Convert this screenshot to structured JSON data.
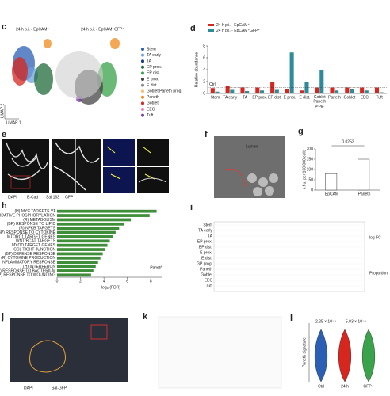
{
  "panels": {
    "c": {
      "letter": "c",
      "titles": [
        "24 h p.i. - EpCAM⁺",
        "24 h p.i. - EpCAM⁺GFP⁺"
      ],
      "xlabel": "UMAP 1",
      "ylabel": "UMAP 2",
      "legend": [
        {
          "name": "Stem",
          "color": "#2b5fb4"
        },
        {
          "name": "TA early",
          "color": "#6f9fdc"
        },
        {
          "name": "TA",
          "color": "#1c3a8a"
        },
        {
          "name": "EP prox.",
          "color": "#1f6b3a"
        },
        {
          "name": "EP dist.",
          "color": "#3aa24a"
        },
        {
          "name": "E prox.",
          "color": "#444444"
        },
        {
          "name": "E dist.",
          "color": "#8a8a8a"
        },
        {
          "name": "Goblet Paneth prog.",
          "color": "#f5c07a"
        },
        {
          "name": "Paneth",
          "color": "#f08a1c"
        },
        {
          "name": "Goblet",
          "color": "#d7261e"
        },
        {
          "name": "EEC",
          "color": "#e87fb0"
        },
        {
          "name": "Tuft",
          "color": "#7a3fa0"
        }
      ]
    },
    "e": {
      "letter": "e",
      "legend": [
        "DAPI",
        "E-Cad",
        "Sal 163",
        "GFP"
      ]
    },
    "f": {
      "letter": "f",
      "label": "Lumen"
    },
    "i": {
      "letter": "i",
      "rows": [
        "Stem",
        "TA early",
        "TA",
        "EP prox.",
        "EP dist.",
        "E prox.",
        "E dist.",
        "GP prog.",
        "Paneth",
        "Goblet",
        "EEC",
        "Tuft"
      ],
      "legend_1": "log FC",
      "legend_2": "Proportion"
    },
    "j": {
      "letter": "j",
      "legend": [
        "DAPI",
        "Sal-GFP"
      ]
    },
    "k": {
      "letter": "k"
    }
  },
  "chart_data": [
    {
      "type": "bar",
      "letter": "d",
      "ylabel": "Relative abundance",
      "annotation": "Ctrl",
      "reference": 1,
      "categories": [
        "Stem",
        "TA early",
        "TA",
        "EP prox.",
        "EP dist.",
        "E prox.",
        "E dist.",
        "Goblet Paneth prog.",
        "Paneth",
        "Goblet",
        "EEC",
        "Tuft"
      ],
      "series": [
        {
          "name": "24 h p.i. - EpCAM⁺",
          "color": "#d7261e",
          "values": [
            0.9,
            1.2,
            1.0,
            1.0,
            2.0,
            0.7,
            0.5,
            1.0,
            1.0,
            1.0,
            1.0,
            1.0
          ]
        },
        {
          "name": "24 h p.i. - EpCAM⁺GFP⁺",
          "color": "#2e8b9a",
          "values": [
            0.3,
            0.6,
            0.4,
            0.5,
            0.6,
            6.9,
            1.9,
            3.9,
            0.5,
            0.8,
            0.5,
            0.2
          ]
        }
      ],
      "ylim": [
        0,
        8
      ],
      "yticks": [
        0,
        2,
        4,
        6,
        8
      ]
    },
    {
      "type": "bar",
      "letter": "g",
      "ylabel": "c.f.u. per 100,000 cells",
      "annotation": "0.0252",
      "color": "#ffffff",
      "categories": [
        "EpCAM",
        "Paneth"
      ],
      "values": [
        80,
        150
      ],
      "ylim": [
        0,
        200
      ],
      "yticks": [
        0,
        50,
        100,
        150,
        200
      ]
    },
    {
      "type": "barh",
      "letter": "h",
      "xlabel": "−log₁₀(FDR)",
      "annotation": "Paneth",
      "color": "#3f8f3a",
      "categories": [
        "(H) MYC TARGETS V1",
        "(H) OXIDATIVE PHOSPHORYLATION",
        "(R) METABOLISM",
        "(BP) RESPONSE TO LIPID",
        "(R) NFKB TARGETS",
        "(BP) RESPONSE TO CYTOKINE",
        "MTORC1 TARGET GENES",
        "WNT/BCAT TARGETS",
        "MYOD TARGET GENES",
        "CCL TIGHT JUNCTION",
        "(BP) DEFENSE RESPONSE",
        "(R) CYTOKINE PRODUCTION",
        "(BP) INFLAMMATORY RESPONSE",
        "(H) INTERFERON",
        "(BP) RESPONSE TO BACTERIUM",
        "(BP) RESPONSE TO WOUNDING"
      ],
      "values": [
        8.5,
        7.9,
        6.3,
        5.7,
        5.3,
        5.0,
        4.8,
        4.5,
        4.3,
        4.1,
        3.9,
        3.7,
        3.5,
        3.3,
        3.1,
        2.9
      ],
      "xlim": [
        0,
        9
      ],
      "xticks": [
        0,
        2,
        4,
        6,
        8
      ]
    },
    {
      "type": "violin",
      "letter": "l",
      "ylabel": "Paneth signature",
      "annotations": [
        "2.25 × 10⁻⁴",
        "5.03 × 10⁻⁴"
      ],
      "categories": [
        "Ctrl",
        "24 h",
        "GFP+"
      ],
      "colors": [
        "#2b5fb4",
        "#d7261e",
        "#3aa24a"
      ]
    }
  ]
}
